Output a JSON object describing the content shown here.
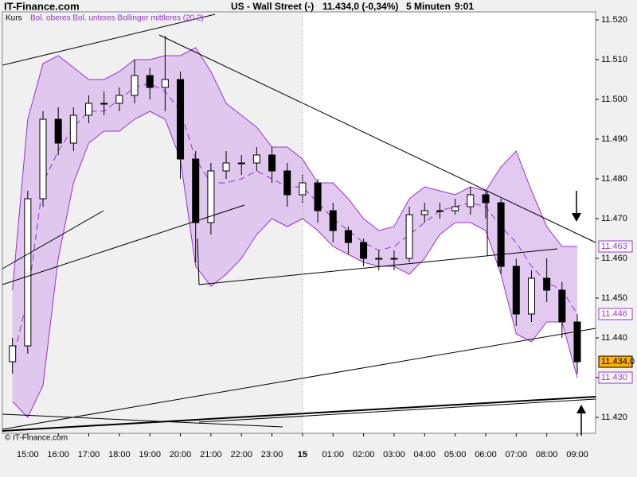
{
  "site": "IT-Finance.com",
  "chart_data": {
    "type": "candlestick",
    "title": "US - Wall Street (-)",
    "quote": "11.434,0 (-0,34%)",
    "interval": "5 Minuten",
    "time": "9:01",
    "panel_label": "Kurs",
    "indicator_label": "Bol. oberes Bol. unteres Bollinger mittleres (20 2)",
    "copyright": "© IT-Finance.com",
    "x": [
      -9.5,
      -9,
      -8.5,
      -8,
      -7.5,
      -7,
      -6.5,
      -6,
      -5.5,
      -5,
      -4.5,
      -4,
      -3.5,
      -3,
      -2.5,
      -2,
      -1.5,
      -1,
      -0.5,
      0,
      0.5,
      1,
      1.5,
      2,
      2.5,
      3,
      3.5,
      4,
      4.5,
      5,
      5.5,
      6,
      6.5,
      7,
      7.5,
      8,
      8.5,
      9
    ],
    "open": [
      11.434,
      11.438,
      11.475,
      11.495,
      11.489,
      11.496,
      11.499,
      11.499,
      11.501,
      11.506,
      11.503,
      11.505,
      11.485,
      11.469,
      11.482,
      11.484,
      11.484,
      11.486,
      11.482,
      11.476,
      11.479,
      11.472,
      11.467,
      11.464,
      11.46,
      11.46,
      11.46,
      11.471,
      11.472,
      11.472,
      11.473,
      11.476,
      11.474,
      11.458,
      11.446,
      11.455,
      11.452,
      11.444
    ],
    "high": [
      11.44,
      11.477,
      11.497,
      11.498,
      11.498,
      11.501,
      11.502,
      11.503,
      11.51,
      11.508,
      11.516,
      11.507,
      11.487,
      11.484,
      11.487,
      11.486,
      11.488,
      11.488,
      11.484,
      11.481,
      11.48,
      11.474,
      11.468,
      11.465,
      11.462,
      11.462,
      11.473,
      11.474,
      11.474,
      11.475,
      11.478,
      11.477,
      11.475,
      11.46,
      11.457,
      11.46,
      11.454,
      11.446
    ],
    "low": [
      11.431,
      11.436,
      11.473,
      11.486,
      11.487,
      11.494,
      11.496,
      11.497,
      11.499,
      11.5,
      11.497,
      11.48,
      11.459,
      11.466,
      11.48,
      11.481,
      11.482,
      11.479,
      11.473,
      11.474,
      11.469,
      11.464,
      11.461,
      11.458,
      11.457,
      11.457,
      11.459,
      11.469,
      11.47,
      11.471,
      11.471,
      11.47,
      11.456,
      11.443,
      11.444,
      11.449,
      11.44,
      11.431
    ],
    "close": [
      11.438,
      11.475,
      11.495,
      11.489,
      11.496,
      11.499,
      11.499,
      11.501,
      11.506,
      11.503,
      11.505,
      11.485,
      11.469,
      11.482,
      11.484,
      11.484,
      11.486,
      11.482,
      11.476,
      11.479,
      11.472,
      11.467,
      11.464,
      11.46,
      11.46,
      11.46,
      11.471,
      11.472,
      11.472,
      11.473,
      11.476,
      11.474,
      11.458,
      11.446,
      11.455,
      11.452,
      11.444,
      11.434
    ],
    "bands": {
      "upper": [
        11.452,
        11.495,
        11.509,
        11.511,
        11.508,
        11.505,
        11.505,
        11.507,
        11.51,
        11.51,
        11.511,
        11.511,
        11.513,
        11.507,
        11.499,
        11.496,
        11.493,
        11.488,
        11.488,
        11.485,
        11.479,
        11.479,
        11.475,
        11.47,
        11.467,
        11.468,
        11.475,
        11.478,
        11.477,
        11.476,
        11.478,
        11.477,
        11.483,
        11.487,
        11.477,
        11.468,
        11.463,
        11.463
      ],
      "middle": [
        11.434,
        11.45,
        11.479,
        11.487,
        11.493,
        11.497,
        11.497,
        11.5,
        11.503,
        11.504,
        11.502,
        11.497,
        11.485,
        11.479,
        11.479,
        11.48,
        11.482,
        11.48,
        11.478,
        11.478,
        11.474,
        11.47,
        11.467,
        11.464,
        11.462,
        11.463,
        11.466,
        11.469,
        11.472,
        11.473,
        11.474,
        11.473,
        11.468,
        11.464,
        11.458,
        11.454,
        11.452,
        11.446
      ],
      "lower": [
        11.424,
        11.42,
        11.428,
        11.46,
        11.479,
        11.489,
        11.492,
        11.492,
        11.495,
        11.497,
        11.495,
        11.485,
        11.458,
        11.453,
        11.456,
        11.46,
        11.466,
        11.47,
        11.468,
        11.47,
        11.467,
        11.463,
        11.461,
        11.459,
        11.458,
        11.458,
        11.456,
        11.46,
        11.466,
        11.469,
        11.469,
        11.467,
        11.456,
        11.441,
        11.439,
        11.444,
        11.444,
        11.43
      ]
    },
    "band_color": "#9933cc",
    "band_fill": "#dcc0ec",
    "up_color": "#ffffff",
    "down_color": "#000000",
    "xlim": [
      -9.83,
      9.6
    ],
    "xticks": [
      {
        "value": -9,
        "label": "15:00"
      },
      {
        "value": -8,
        "label": "16:00"
      },
      {
        "value": -7,
        "label": "17:00"
      },
      {
        "value": -6,
        "label": "18:00"
      },
      {
        "value": -5,
        "label": "19:00"
      },
      {
        "value": -4,
        "label": "20:00"
      },
      {
        "value": -3,
        "label": "21:00"
      },
      {
        "value": -2,
        "label": "22:00"
      },
      {
        "value": -1,
        "label": "23:00"
      },
      {
        "value": 0,
        "label": "15"
      },
      {
        "value": 1,
        "label": "01:00"
      },
      {
        "value": 2,
        "label": "02:00"
      },
      {
        "value": 3,
        "label": "03:00"
      },
      {
        "value": 4,
        "label": "04:00"
      },
      {
        "value": 5,
        "label": "05:00"
      },
      {
        "value": 6,
        "label": "06:00"
      },
      {
        "value": 7,
        "label": "07:00"
      },
      {
        "value": 8,
        "label": "08:00"
      },
      {
        "value": 9,
        "label": "09:00"
      }
    ],
    "ylim": [
      11.416,
      11.522
    ],
    "yticks": [
      {
        "value": 11.42,
        "label": "11.420"
      },
      {
        "value": 11.43,
        "label": "11.430"
      },
      {
        "value": 11.44,
        "label": "11.440"
      },
      {
        "value": 11.45,
        "label": "11.450"
      },
      {
        "value": 11.46,
        "label": "11.460"
      },
      {
        "value": 11.47,
        "label": "11.470"
      },
      {
        "value": 11.48,
        "label": "11.480"
      },
      {
        "value": 11.49,
        "label": "11.490"
      },
      {
        "value": 11.5,
        "label": "11.500"
      },
      {
        "value": 11.51,
        "label": "11.510"
      },
      {
        "value": 11.52,
        "label": "11.520"
      }
    ],
    "price_labels": [
      {
        "value": 11.463,
        "label": "11.463",
        "color": "#9933cc",
        "background": "#ffffff"
      },
      {
        "value": 11.446,
        "label": "11.446",
        "color": "#9933cc",
        "background": "#ffffff"
      },
      {
        "value": 11.434,
        "label": "11.434,0",
        "color": "#000000",
        "background": "#ffb000"
      },
      {
        "value": 11.43,
        "label": "11.430",
        "color": "#9933cc",
        "background": "#ffffff"
      }
    ],
    "grid": false
  }
}
